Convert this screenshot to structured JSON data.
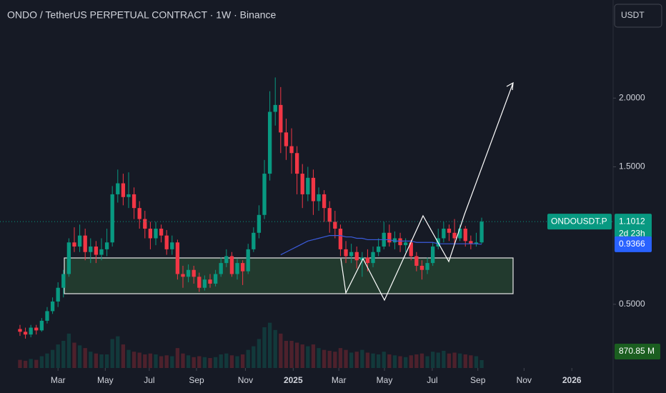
{
  "chart_data": {
    "type": "candlestick",
    "title": "ONDO / TetherUS PERPETUAL CONTRACT · 1W · Binance",
    "currency": "USDT",
    "symbol_label": "ONDOUSDT.P",
    "countdown": "2d 23h",
    "up_color": "#089981",
    "down_color": "#f23645",
    "ma_color": "#3b5bdb",
    "ylim": [
      0.0365,
      2.7135
    ],
    "yticks": [
      {
        "value": 0.5,
        "label": "0.5000"
      },
      {
        "value": 1.5,
        "label": "1.5000"
      },
      {
        "value": 2,
        "label": "2.0000"
      }
    ],
    "xlim": [
      -3.68,
      109.2
    ],
    "xticks": [
      {
        "value": 7,
        "label": "Mar"
      },
      {
        "value": 15.7,
        "label": "May"
      },
      {
        "value": 23.8,
        "label": "Jul"
      },
      {
        "value": 32.5,
        "label": "Sep"
      },
      {
        "value": 41.5,
        "label": "Nov"
      },
      {
        "value": 50.3,
        "label": "2025"
      },
      {
        "value": 58.7,
        "label": "Mar"
      },
      {
        "value": 67.1,
        "label": "May"
      },
      {
        "value": 75.9,
        "label": "Jul"
      },
      {
        "value": 84.3,
        "label": "Sep"
      },
      {
        "value": 92.8,
        "label": "Nov"
      },
      {
        "value": 101.6,
        "label": "2026"
      }
    ],
    "candles": [
      [
        0.32,
        0.35,
        0.27,
        0.3
      ],
      [
        0.3,
        0.33,
        0.25,
        0.28
      ],
      [
        0.28,
        0.35,
        0.26,
        0.33
      ],
      [
        0.33,
        0.35,
        0.28,
        0.31
      ],
      [
        0.31,
        0.4,
        0.3,
        0.38
      ],
      [
        0.38,
        0.48,
        0.36,
        0.45
      ],
      [
        0.45,
        0.55,
        0.43,
        0.52
      ],
      [
        0.52,
        0.66,
        0.48,
        0.62
      ],
      [
        0.62,
        0.75,
        0.55,
        0.72
      ],
      [
        0.72,
        0.98,
        0.7,
        0.95
      ],
      [
        0.95,
        1.06,
        0.88,
        0.92
      ],
      [
        0.92,
        1.08,
        0.88,
        1.0
      ],
      [
        1.0,
        1.05,
        0.82,
        0.88
      ],
      [
        0.88,
        0.98,
        0.8,
        0.92
      ],
      [
        0.92,
        0.96,
        0.8,
        0.86
      ],
      [
        0.86,
        0.98,
        0.82,
        0.9
      ],
      [
        0.9,
        1.05,
        0.85,
        0.95
      ],
      [
        0.95,
        1.36,
        0.92,
        1.3
      ],
      [
        1.3,
        1.48,
        1.24,
        1.38
      ],
      [
        1.38,
        1.45,
        1.22,
        1.28
      ],
      [
        1.28,
        1.46,
        1.2,
        1.3
      ],
      [
        1.3,
        1.35,
        1.12,
        1.2
      ],
      [
        1.2,
        1.25,
        1.05,
        1.12
      ],
      [
        1.12,
        1.18,
        0.98,
        1.05
      ],
      [
        1.05,
        1.1,
        0.9,
        0.98
      ],
      [
        0.98,
        1.1,
        0.93,
        1.05
      ],
      [
        1.05,
        1.08,
        0.95,
        1.0
      ],
      [
        1.0,
        1.04,
        0.86,
        0.9
      ],
      [
        0.9,
        1.0,
        0.86,
        0.95
      ],
      [
        0.95,
        0.97,
        0.68,
        0.72
      ],
      [
        0.72,
        0.78,
        0.62,
        0.7
      ],
      [
        0.7,
        0.79,
        0.66,
        0.75
      ],
      [
        0.75,
        0.78,
        0.65,
        0.7
      ],
      [
        0.7,
        0.73,
        0.59,
        0.62
      ],
      [
        0.62,
        0.71,
        0.6,
        0.68
      ],
      [
        0.68,
        0.72,
        0.62,
        0.65
      ],
      [
        0.65,
        0.75,
        0.63,
        0.72
      ],
      [
        0.72,
        0.84,
        0.7,
        0.8
      ],
      [
        0.8,
        0.9,
        0.77,
        0.85
      ],
      [
        0.85,
        0.88,
        0.7,
        0.72
      ],
      [
        0.72,
        0.83,
        0.68,
        0.8
      ],
      [
        0.8,
        0.82,
        0.64,
        0.74
      ],
      [
        0.74,
        0.94,
        0.72,
        0.9
      ],
      [
        0.9,
        1.06,
        0.88,
        1.02
      ],
      [
        1.02,
        1.22,
        0.98,
        1.15
      ],
      [
        1.15,
        1.55,
        1.12,
        1.45
      ],
      [
        1.45,
        2.05,
        1.4,
        1.9
      ],
      [
        1.9,
        2.15,
        1.8,
        1.95
      ],
      [
        1.95,
        2.08,
        1.6,
        1.75
      ],
      [
        1.75,
        1.85,
        1.55,
        1.65
      ],
      [
        1.65,
        1.78,
        1.45,
        1.6
      ],
      [
        1.6,
        1.65,
        1.3,
        1.45
      ],
      [
        1.45,
        1.52,
        1.2,
        1.3
      ],
      [
        1.3,
        1.5,
        1.25,
        1.42
      ],
      [
        1.42,
        1.48,
        1.15,
        1.25
      ],
      [
        1.25,
        1.35,
        1.18,
        1.3
      ],
      [
        1.3,
        1.33,
        1.1,
        1.2
      ],
      [
        1.2,
        1.25,
        1.02,
        1.1
      ],
      [
        1.1,
        1.18,
        0.98,
        1.05
      ],
      [
        1.05,
        1.08,
        0.85,
        0.9
      ],
      [
        0.9,
        0.96,
        0.8,
        0.85
      ],
      [
        0.85,
        0.94,
        0.8,
        0.88
      ],
      [
        0.88,
        0.92,
        0.76,
        0.82
      ],
      [
        0.82,
        0.88,
        0.7,
        0.84
      ],
      [
        0.84,
        0.9,
        0.74,
        0.8
      ],
      [
        0.8,
        0.92,
        0.77,
        0.88
      ],
      [
        0.88,
        0.98,
        0.85,
        0.92
      ],
      [
        0.92,
        1.1,
        0.9,
        1.02
      ],
      [
        1.02,
        1.08,
        0.92,
        0.95
      ],
      [
        0.95,
        1.03,
        0.9,
        0.98
      ],
      [
        0.98,
        1.02,
        0.88,
        0.93
      ],
      [
        0.93,
        0.98,
        0.88,
        0.95
      ],
      [
        0.95,
        0.97,
        0.82,
        0.85
      ],
      [
        0.85,
        0.88,
        0.74,
        0.78
      ],
      [
        0.78,
        0.82,
        0.68,
        0.75
      ],
      [
        0.75,
        0.84,
        0.72,
        0.8
      ],
      [
        0.8,
        0.95,
        0.78,
        0.92
      ],
      [
        0.92,
        1.05,
        0.9,
        0.98
      ],
      [
        0.98,
        1.1,
        0.95,
        1.05
      ],
      [
        1.05,
        1.08,
        0.96,
        1.02
      ],
      [
        1.02,
        1.12,
        0.94,
        0.98
      ],
      [
        0.98,
        1.08,
        0.96,
        1.05
      ],
      [
        1.05,
        1.07,
        0.92,
        0.96
      ],
      [
        0.96,
        1.0,
        0.9,
        0.94
      ],
      [
        0.94,
        1.02,
        0.92,
        0.95
      ],
      [
        0.95,
        1.13,
        0.94,
        1.1012
      ]
    ],
    "ma": [
      null,
      null,
      null,
      null,
      null,
      null,
      null,
      null,
      null,
      null,
      null,
      null,
      null,
      null,
      null,
      null,
      null,
      null,
      null,
      null,
      null,
      null,
      null,
      null,
      null,
      null,
      null,
      null,
      null,
      null,
      null,
      null,
      null,
      null,
      null,
      null,
      null,
      null,
      null,
      null,
      null,
      null,
      null,
      null,
      null,
      null,
      null,
      null,
      0.86,
      0.88,
      0.9,
      0.92,
      0.94,
      0.96,
      0.97,
      0.98,
      0.99,
      1.0,
      1.0,
      1.0,
      0.99,
      0.99,
      0.98,
      0.98,
      0.97,
      0.97,
      0.97,
      0.97,
      0.97,
      0.96,
      0.96,
      0.96,
      0.96,
      0.95,
      0.95,
      0.95,
      0.95,
      0.94,
      0.94,
      0.94,
      0.94,
      0.94,
      0.94,
      0.94,
      0.94,
      0.9366
    ],
    "volume": {
      "vlim": [
        0,
        7500
      ],
      "last_label": "870.85 M",
      "values": [
        900,
        800,
        1000,
        900,
        1300,
        1600,
        2000,
        2600,
        3000,
        3800,
        2800,
        2500,
        2200,
        1800,
        1600,
        1500,
        1500,
        3200,
        3500,
        2600,
        2000,
        1800,
        1700,
        1500,
        1600,
        1500,
        1300,
        1400,
        1300,
        2200,
        1600,
        1400,
        1200,
        1300,
        1200,
        1100,
        1200,
        1500,
        1600,
        1400,
        1300,
        1500,
        2000,
        2400,
        3200,
        4500,
        5000,
        4200,
        3800,
        3000,
        3000,
        2800,
        2600,
        2400,
        2600,
        2200,
        2000,
        1900,
        1800,
        2200,
        2000,
        1700,
        1800,
        2000,
        1700,
        1600,
        1500,
        1800,
        1500,
        1400,
        1300,
        1200,
        1400,
        1500,
        1600,
        1300,
        1800,
        1700,
        1900,
        1600,
        1700,
        1600,
        1500,
        1400,
        1300,
        870.85
      ]
    }
  }
}
